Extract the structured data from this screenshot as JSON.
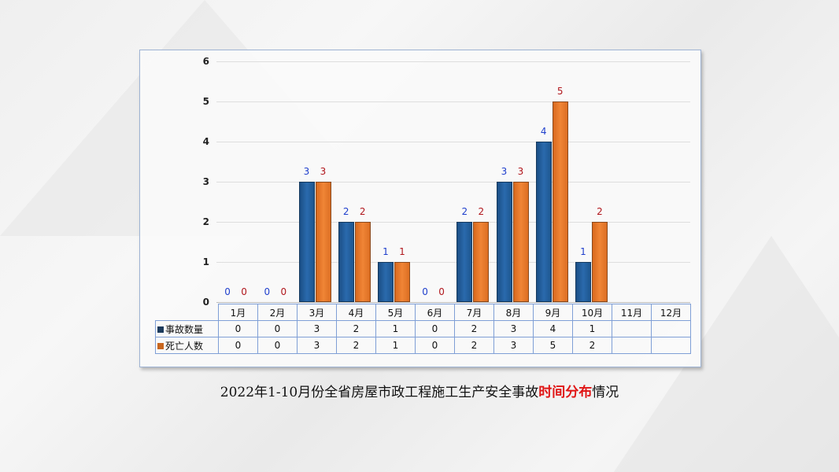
{
  "chart_data": {
    "type": "bar",
    "title": "2022年1-10月份全省房屋市政工程施工生产安全事故时间分布情况",
    "categories": [
      "1月",
      "2月",
      "3月",
      "4月",
      "5月",
      "6月",
      "7月",
      "8月",
      "9月",
      "10月",
      "11月",
      "12月"
    ],
    "series": [
      {
        "name": "事故数量",
        "color": "#2a6aad",
        "label_color": "#1f3fcc",
        "values": [
          0,
          0,
          3,
          2,
          1,
          0,
          2,
          3,
          4,
          1,
          null,
          null
        ]
      },
      {
        "name": "死亡人数",
        "color": "#f08536",
        "label_color": "#b0161c",
        "values": [
          0,
          0,
          3,
          2,
          1,
          0,
          2,
          3,
          5,
          2,
          null,
          null
        ]
      }
    ],
    "xlabel": "",
    "ylabel": "",
    "ylim": [
      0,
      6
    ],
    "yticks": [
      0,
      1,
      2,
      3,
      4,
      5,
      6
    ],
    "grid": true,
    "legend_position": "data-table",
    "data_table": true
  },
  "caption": {
    "prefix": "2022年1-10月份全省房屋市政工程施工生产安全事故",
    "highlight": "时间分布",
    "suffix": "情况"
  }
}
